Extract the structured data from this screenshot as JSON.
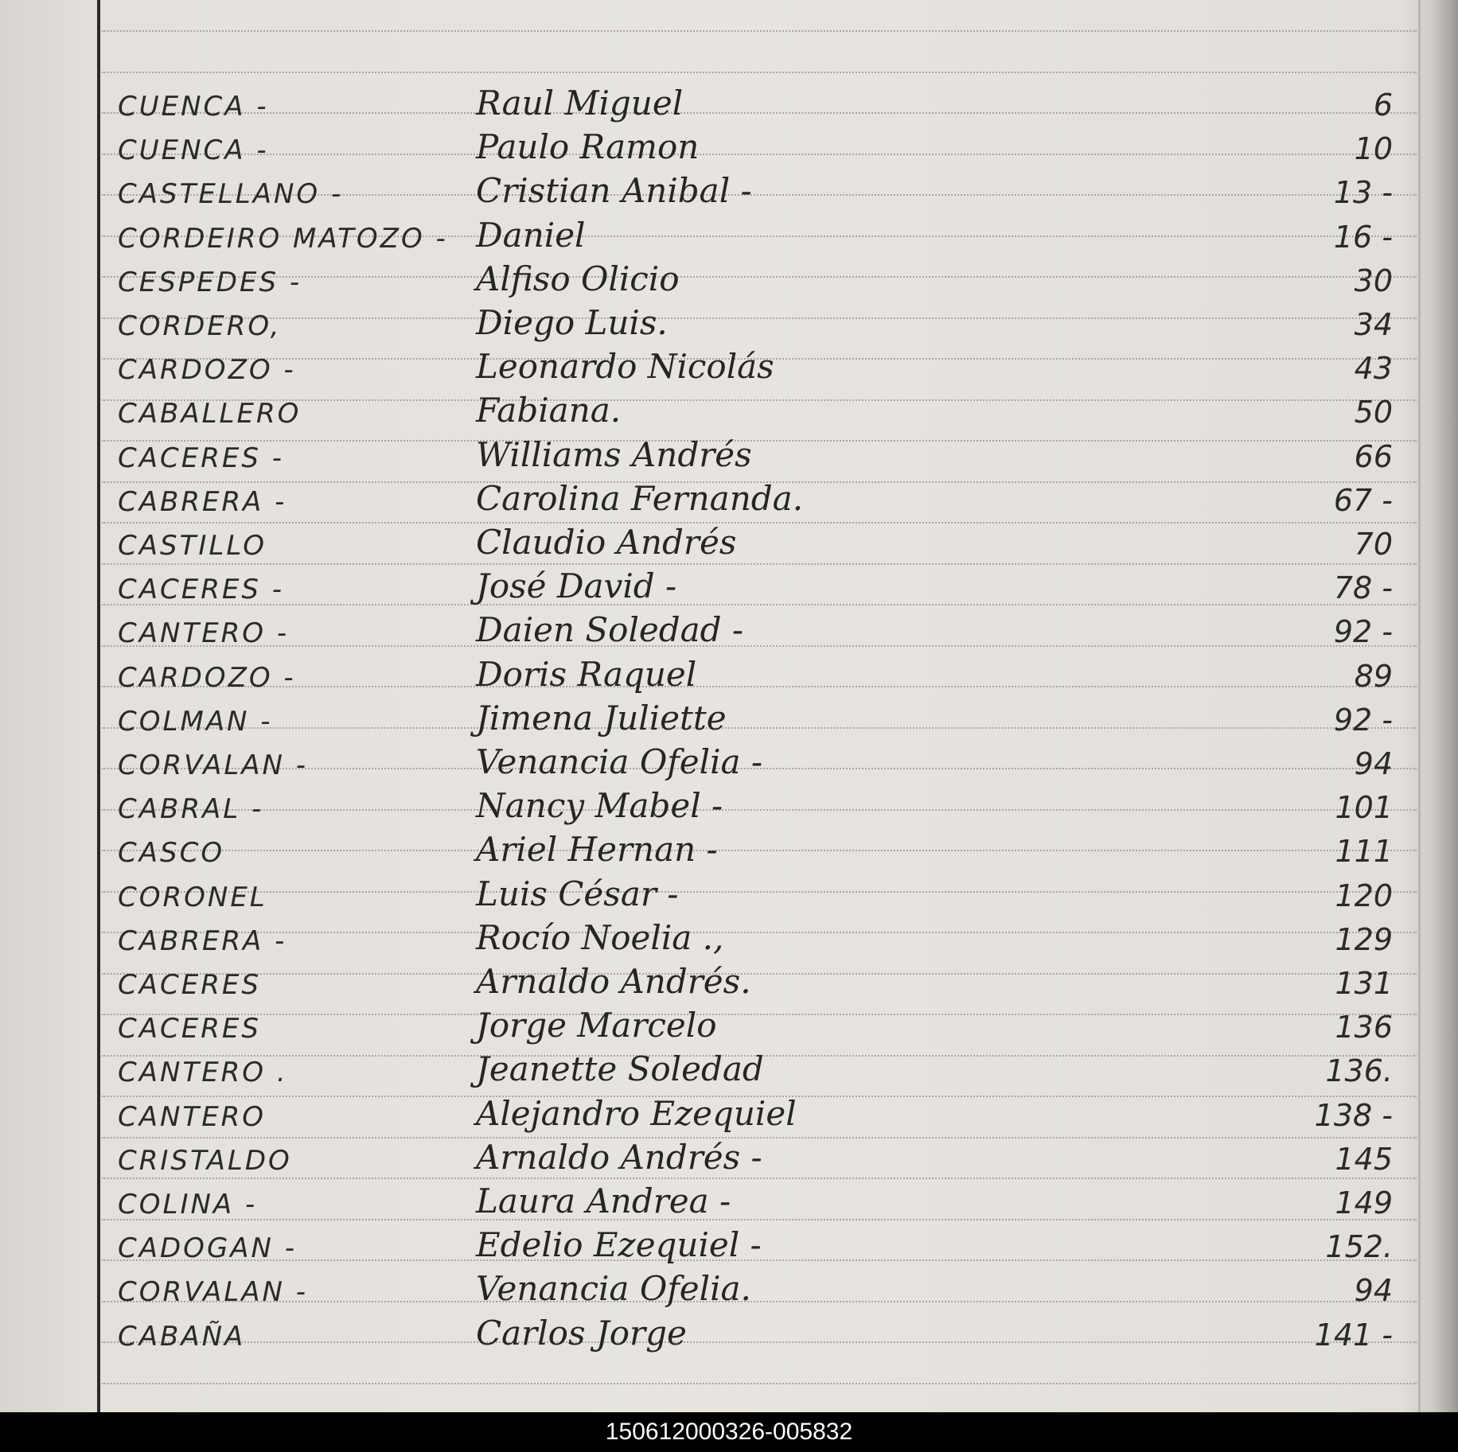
{
  "entries": [
    {
      "surname": "CUENCA -",
      "given": "Raul Miguel",
      "number": "6"
    },
    {
      "surname": "CUENCA -",
      "given": "Paulo Ramon",
      "number": "10"
    },
    {
      "surname": "CASTELLANO -",
      "given": "Cristian Anibal -",
      "number": "13 -"
    },
    {
      "surname": "CORDEIRO MATOZO -",
      "given": "Daniel",
      "number": "16 -"
    },
    {
      "surname": "CESPEDES -",
      "given": "Alfiso Olicio",
      "number": "30"
    },
    {
      "surname": "CORDERO,",
      "given": "Diego Luis.",
      "number": "34"
    },
    {
      "surname": "CARDOZO -",
      "given": "Leonardo Nicolás",
      "number": "43"
    },
    {
      "surname": "CABALLERO",
      "given": "Fabiana.",
      "number": "50"
    },
    {
      "surname": "CACERES -",
      "given": "Williams Andrés",
      "number": "66"
    },
    {
      "surname": "CABRERA -",
      "given": "Carolina Fernanda.",
      "number": "67 -"
    },
    {
      "surname": "CASTILLO",
      "given": "Claudio Andrés",
      "number": "70"
    },
    {
      "surname": "CACERES -",
      "given": "José David -",
      "number": "78 -"
    },
    {
      "surname": "CANTERO -",
      "given": "Daien Soledad -",
      "number": "92 -"
    },
    {
      "surname": "CARDOZO -",
      "given": "Doris Raquel",
      "number": "89"
    },
    {
      "surname": "COLMAN -",
      "given": "Jimena Juliette",
      "number": "92 -"
    },
    {
      "surname": "CORVALAN -",
      "given": "Venancia Ofelia -",
      "number": "94"
    },
    {
      "surname": "CABRAL -",
      "given": "Nancy Mabel -",
      "number": "101"
    },
    {
      "surname": "CASCO",
      "given": "Ariel Hernan -",
      "number": "111"
    },
    {
      "surname": "CORONEL",
      "given": "Luis César -",
      "number": "120"
    },
    {
      "surname": "CABRERA -",
      "given": "Rocío Noelia .,",
      "number": "129"
    },
    {
      "surname": "CACERES",
      "given": "Arnaldo Andrés.",
      "number": "131"
    },
    {
      "surname": "CACERES",
      "given": "Jorge Marcelo",
      "number": "136"
    },
    {
      "surname": "CANTERO .",
      "given": "Jeanette Soledad",
      "number": "136."
    },
    {
      "surname": "CANTERO",
      "given": "Alejandro Ezequiel",
      "number": "138 -"
    },
    {
      "surname": "CRISTALDO",
      "given": "Arnaldo Andrés -",
      "number": "145"
    },
    {
      "surname": "COLINA -",
      "given": "Laura Andrea -",
      "number": "149"
    },
    {
      "surname": "CADOGAN -",
      "given": "Edelio Ezequiel -",
      "number": "152."
    },
    {
      "surname": "CORVALAN -",
      "given": "Venancia Ofelia.",
      "number": "94"
    },
    {
      "surname": "CABAÑA",
      "given": "Carlos Jorge",
      "number": "141 -"
    }
  ],
  "footer": {
    "id": "150612000326-005832"
  }
}
